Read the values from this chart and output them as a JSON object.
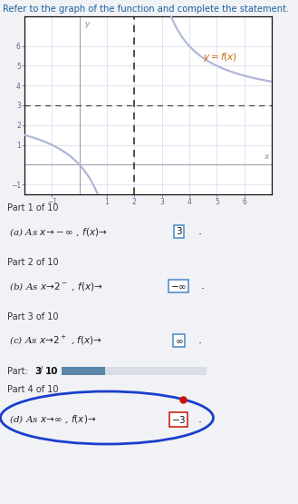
{
  "title_text": "Refer to the graph of the function and complete the statement.",
  "graph_label": "y = f(x)",
  "xlim": [
    -2,
    7
  ],
  "ylim": [
    -1.5,
    7.5
  ],
  "xticks": [
    -1,
    1,
    2,
    3,
    4,
    5,
    6
  ],
  "yticks": [
    -1,
    1,
    2,
    3,
    4,
    5,
    6
  ],
  "vertical_asymptote": 2,
  "horizontal_asymptote": 3,
  "curve_color": "#b0b8d8",
  "dashed_h_color": "#444444",
  "dashed_v_color": "#222222",
  "header_bg": "#d4d9e2",
  "progress_bg": "#5a85a8",
  "progress_track": "#d8dde6",
  "body_bg": "#ffffff",
  "page_bg": "#f0f2f5",
  "circle_color": "#1a3fcc",
  "red_dot_color": "#cc1100",
  "graph_bg": "#ffffff",
  "grid_color": "#ccd0e8",
  "axis_color": "#888899",
  "tick_color": "#666688",
  "label_color": "#cc6600",
  "title_color": "#2060a0",
  "text_color": "#222222"
}
